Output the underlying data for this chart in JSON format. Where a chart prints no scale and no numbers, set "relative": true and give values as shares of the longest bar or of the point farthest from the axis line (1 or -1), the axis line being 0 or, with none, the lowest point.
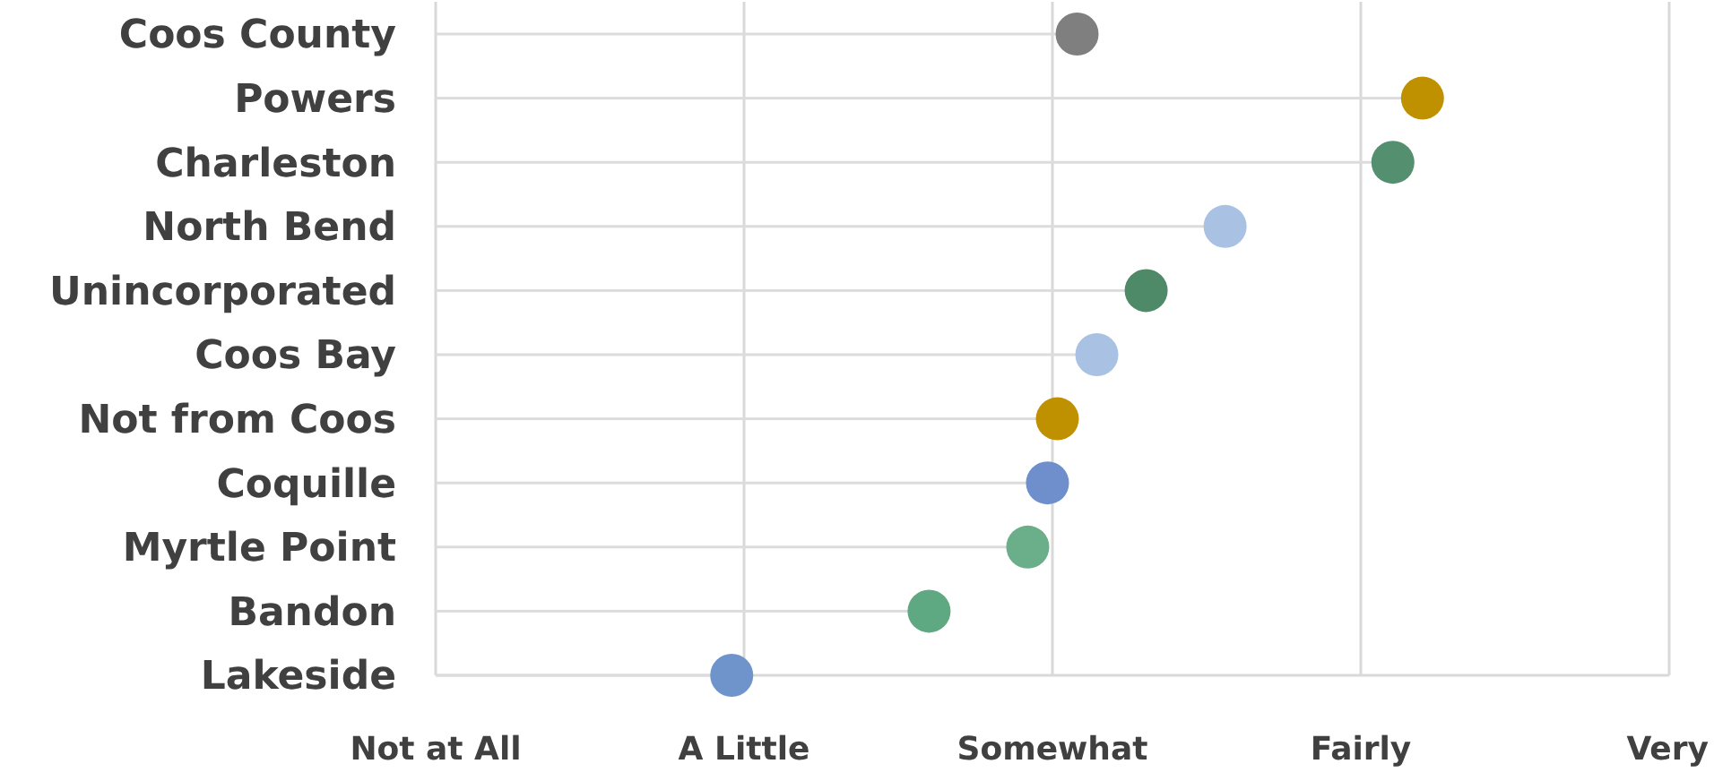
{
  "chart_data": {
    "type": "lollipop",
    "orientation": "horizontal",
    "relative": true,
    "categories": [
      "Coos County",
      "Powers",
      "Charleston",
      "North Bend",
      "Unincorporated",
      "Coos Bay",
      "Not from Coos",
      "Coquille",
      "Myrtle Point",
      "Bandon",
      "Lakeside"
    ],
    "values": [
      0.65,
      1,
      0.97,
      0.8,
      0.72,
      0.67,
      0.63,
      0.62,
      0.6,
      0.5,
      0.3
    ],
    "colors": [
      "#7f7f7f",
      "#bf9000",
      "#548f6f",
      "#a9c1e3",
      "#4e8a68",
      "#a9c1e3",
      "#bf9000",
      "#6f8fcc",
      "#6aaf8a",
      "#5ea882",
      "#6f94cc"
    ],
    "annotations": [
      "Not at All",
      "A Little",
      "Somewhat",
      "Fairly",
      "Very"
    ],
    "grid": "x"
  }
}
